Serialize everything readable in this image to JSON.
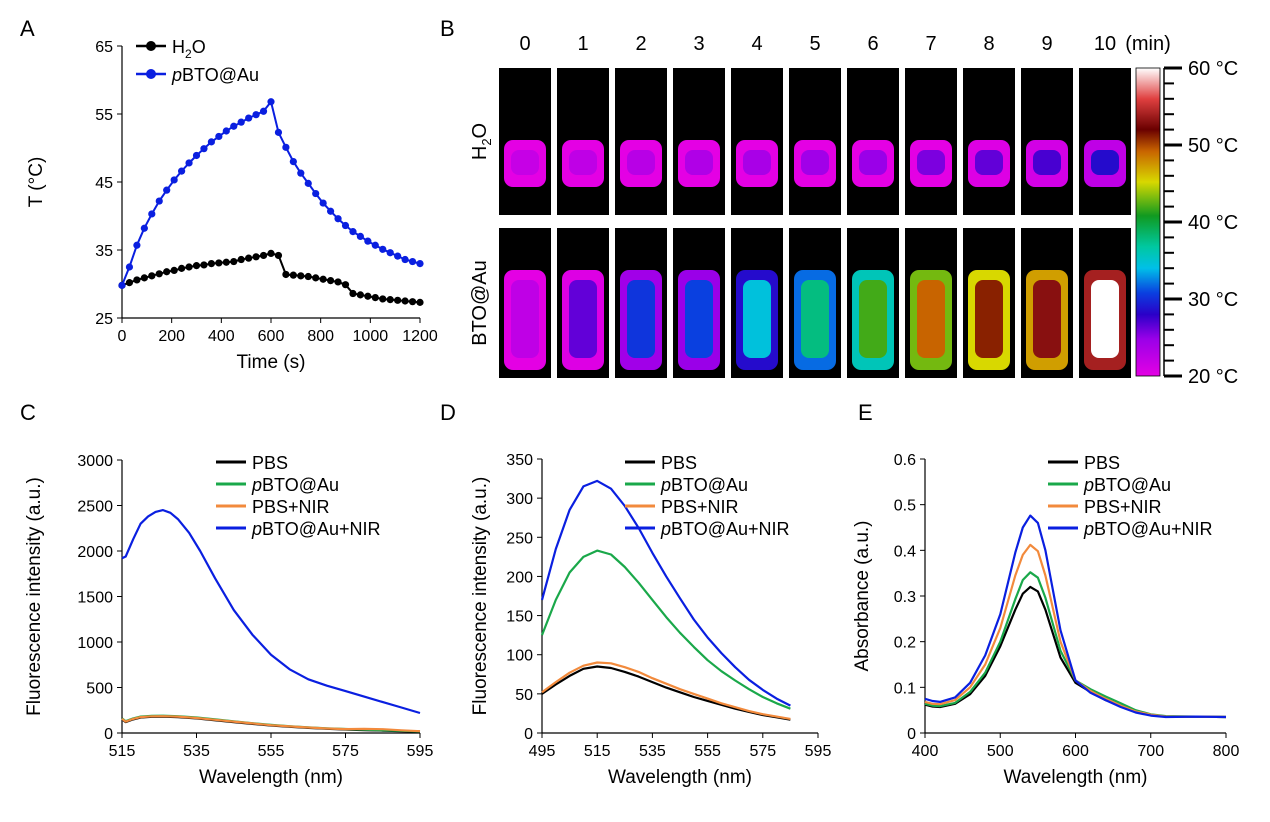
{
  "panels": {
    "A": "A",
    "B": "B",
    "C": "C",
    "D": "D",
    "E": "E"
  },
  "colors": {
    "h2o": "#000000",
    "pbto_au": "#0a1fe0",
    "pbs": "#000000",
    "pbto_au_green": "#1aa84a",
    "pbs_nir": "#f28a3c",
    "pbto_au_nir": "#0a1fe0"
  },
  "chart_data": [
    {
      "panel": "A",
      "type": "line",
      "xlabel": "Time (s)",
      "ylabel": "T (°C)",
      "xlim": [
        0,
        1200
      ],
      "ylim": [
        25,
        65
      ],
      "xticks": [
        0,
        200,
        400,
        600,
        800,
        1000,
        1200
      ],
      "yticks": [
        25,
        35,
        45,
        55,
        65
      ],
      "legend_position": "top-left",
      "series": [
        {
          "name": "H2O",
          "color": "#000000",
          "x": [
            0,
            30,
            60,
            90,
            120,
            150,
            180,
            210,
            240,
            270,
            300,
            330,
            360,
            390,
            420,
            450,
            480,
            510,
            540,
            570,
            600,
            630,
            660,
            690,
            720,
            750,
            780,
            810,
            840,
            870,
            900,
            930,
            960,
            990,
            1020,
            1050,
            1080,
            1110,
            1140,
            1170,
            1200
          ],
          "y": [
            29.8,
            30.2,
            30.6,
            30.9,
            31.2,
            31.5,
            31.8,
            32.0,
            32.3,
            32.5,
            32.7,
            32.8,
            33.0,
            33.1,
            33.2,
            33.3,
            33.6,
            33.8,
            34.0,
            34.2,
            34.5,
            34.2,
            31.4,
            31.3,
            31.2,
            31.1,
            30.9,
            30.7,
            30.5,
            30.3,
            29.9,
            28.6,
            28.4,
            28.2,
            28.0,
            27.8,
            27.7,
            27.6,
            27.5,
            27.4,
            27.3
          ]
        },
        {
          "name": "pBTO@Au",
          "color": "#0a1fe0",
          "x": [
            0,
            30,
            60,
            90,
            120,
            150,
            180,
            210,
            240,
            270,
            300,
            330,
            360,
            390,
            420,
            450,
            480,
            510,
            540,
            570,
            600,
            630,
            660,
            690,
            720,
            750,
            780,
            810,
            840,
            870,
            900,
            930,
            960,
            990,
            1020,
            1050,
            1080,
            1110,
            1140,
            1170,
            1200
          ],
          "y": [
            29.8,
            32.5,
            35.7,
            38.2,
            40.3,
            42.2,
            43.8,
            45.3,
            46.6,
            47.8,
            48.9,
            49.9,
            50.9,
            51.7,
            52.5,
            53.2,
            53.8,
            54.4,
            54.9,
            55.4,
            56.8,
            52.3,
            50.1,
            48.0,
            46.3,
            44.8,
            43.3,
            41.9,
            40.7,
            39.6,
            38.6,
            37.7,
            37.0,
            36.3,
            35.7,
            35.1,
            34.6,
            34.1,
            33.6,
            33.3,
            33.0
          ]
        }
      ]
    },
    {
      "panel": "B",
      "type": "heatmap",
      "column_labels": [
        "0",
        "1",
        "2",
        "3",
        "4",
        "5",
        "6",
        "7",
        "8",
        "9",
        "10"
      ],
      "column_unit": "(min)",
      "row_labels": [
        "H2O",
        "BTO@Au"
      ],
      "colorbar_labels": [
        "60 °C",
        "50 °C",
        "40 °C",
        "30 °C",
        "20 °C"
      ],
      "colorbar_range": [
        20,
        60
      ],
      "temperatures_C": [
        [
          22.0,
          22.5,
          23.0,
          23.5,
          24.0,
          24.5,
          25.0,
          25.8,
          26.5,
          27.2,
          28.5
        ],
        [
          22.5,
          26.5,
          30.5,
          31.0,
          34.5,
          38.0,
          42.0,
          49.0,
          51.0,
          53.0,
          60.0
        ]
      ]
    },
    {
      "panel": "C",
      "type": "line",
      "xlabel": "Wavelength (nm)",
      "ylabel": "Fluorescence intensity (a.u.)",
      "xlim": [
        515,
        595
      ],
      "ylim": [
        0,
        3000
      ],
      "xticks": [
        515,
        535,
        555,
        575,
        595
      ],
      "yticks": [
        0,
        500,
        1000,
        1500,
        2000,
        2500,
        3000
      ],
      "legend_position": "top-right",
      "series": [
        {
          "name": "PBS",
          "color": "#000000",
          "x": [
            515,
            516,
            518,
            520,
            523,
            526,
            530,
            535,
            540,
            545,
            550,
            555,
            560,
            565,
            570,
            575,
            580,
            585,
            590,
            595
          ],
          "y": [
            150,
            120,
            150,
            170,
            178,
            180,
            175,
            160,
            140,
            120,
            100,
            82,
            68,
            56,
            46,
            38,
            32,
            26,
            20,
            15
          ]
        },
        {
          "name": "pBTO@Au",
          "color": "#1aa84a",
          "x": [
            515,
            516,
            518,
            520,
            523,
            526,
            530,
            535,
            540,
            545,
            550,
            555,
            560,
            565,
            570,
            575,
            580,
            585,
            590,
            595
          ],
          "y": [
            160,
            130,
            160,
            180,
            188,
            190,
            185,
            170,
            150,
            128,
            108,
            90,
            75,
            62,
            52,
            44,
            36,
            30,
            24,
            18
          ]
        },
        {
          "name": "PBS+NIR",
          "color": "#f28a3c",
          "x": [
            515,
            516,
            518,
            520,
            523,
            526,
            530,
            535,
            540,
            545,
            550,
            555,
            560,
            565,
            570,
            575,
            580,
            585,
            590,
            595
          ],
          "y": [
            155,
            125,
            155,
            175,
            183,
            185,
            180,
            165,
            145,
            125,
            105,
            86,
            72,
            60,
            50,
            43,
            45,
            42,
            30,
            20
          ]
        },
        {
          "name": "pBTO@Au+NIR",
          "color": "#0a1fe0",
          "x": [
            515,
            516,
            518,
            520,
            522,
            524,
            526,
            528,
            530,
            533,
            536,
            540,
            545,
            550,
            555,
            560,
            565,
            570,
            575,
            580,
            585,
            590,
            595
          ],
          "y": [
            1920,
            1940,
            2130,
            2300,
            2380,
            2430,
            2450,
            2420,
            2350,
            2200,
            2000,
            1700,
            1350,
            1080,
            860,
            700,
            590,
            520,
            460,
            400,
            340,
            280,
            220
          ]
        }
      ]
    },
    {
      "panel": "D",
      "type": "line",
      "xlabel": "Wavelength (nm)",
      "ylabel": "Fluorescence intensity (a.u.)",
      "xlim": [
        495,
        595
      ],
      "ylim": [
        0,
        350
      ],
      "xticks": [
        495,
        515,
        535,
        555,
        575,
        595
      ],
      "yticks": [
        0,
        50,
        100,
        150,
        200,
        250,
        300,
        350
      ],
      "legend_position": "top-right",
      "series": [
        {
          "name": "PBS",
          "color": "#000000",
          "x": [
            495,
            500,
            505,
            510,
            515,
            520,
            525,
            530,
            535,
            540,
            545,
            550,
            555,
            560,
            565,
            570,
            575,
            580,
            585
          ],
          "y": [
            50,
            62,
            73,
            82,
            85,
            83,
            78,
            72,
            65,
            58,
            52,
            46,
            41,
            36,
            31,
            27,
            23,
            20,
            17
          ]
        },
        {
          "name": "pBTO@Au",
          "color": "#1aa84a",
          "x": [
            495,
            500,
            505,
            510,
            515,
            520,
            525,
            530,
            535,
            540,
            545,
            550,
            555,
            560,
            565,
            570,
            575,
            580,
            585
          ],
          "y": [
            125,
            170,
            205,
            225,
            233,
            228,
            212,
            192,
            170,
            148,
            128,
            110,
            93,
            79,
            67,
            56,
            46,
            38,
            31
          ]
        },
        {
          "name": "PBS+NIR",
          "color": "#f28a3c",
          "x": [
            495,
            500,
            505,
            510,
            515,
            520,
            525,
            530,
            535,
            540,
            545,
            550,
            555,
            560,
            565,
            570,
            575,
            580,
            585
          ],
          "y": [
            52,
            65,
            77,
            86,
            90,
            89,
            84,
            78,
            70,
            63,
            56,
            50,
            44,
            38,
            33,
            28,
            24,
            21,
            18
          ]
        },
        {
          "name": "pBTO@Au+NIR",
          "color": "#0a1fe0",
          "x": [
            495,
            500,
            505,
            510,
            515,
            520,
            525,
            530,
            535,
            540,
            545,
            550,
            555,
            560,
            565,
            570,
            575,
            580,
            585
          ],
          "y": [
            170,
            235,
            285,
            315,
            322,
            312,
            290,
            262,
            230,
            200,
            172,
            145,
            122,
            102,
            84,
            68,
            55,
            44,
            35
          ]
        }
      ]
    },
    {
      "panel": "E",
      "type": "line",
      "xlabel": "Wavelength (nm)",
      "ylabel": "Absorbance (a.u.)",
      "xlim": [
        400,
        800
      ],
      "ylim": [
        0,
        0.6
      ],
      "xticks": [
        400,
        500,
        600,
        700,
        800
      ],
      "yticks": [
        0,
        0.1,
        0.2,
        0.3,
        0.4,
        0.5,
        0.6
      ],
      "legend_position": "top-right",
      "series": [
        {
          "name": "PBS",
          "color": "#000000",
          "x": [
            400,
            410,
            420,
            440,
            460,
            480,
            500,
            520,
            530,
            540,
            550,
            560,
            580,
            600,
            620,
            640,
            660,
            680,
            700,
            720,
            760,
            800
          ],
          "y": [
            0.062,
            0.058,
            0.057,
            0.064,
            0.085,
            0.125,
            0.19,
            0.27,
            0.305,
            0.32,
            0.31,
            0.27,
            0.165,
            0.11,
            0.09,
            0.072,
            0.06,
            0.048,
            0.04,
            0.036,
            0.036,
            0.035
          ]
        },
        {
          "name": "pBTO@Au",
          "color": "#1aa84a",
          "x": [
            400,
            410,
            420,
            440,
            460,
            480,
            500,
            520,
            530,
            540,
            550,
            560,
            580,
            600,
            620,
            640,
            660,
            680,
            700,
            720,
            760,
            800
          ],
          "y": [
            0.064,
            0.06,
            0.059,
            0.066,
            0.09,
            0.132,
            0.2,
            0.293,
            0.335,
            0.352,
            0.34,
            0.296,
            0.18,
            0.115,
            0.096,
            0.08,
            0.065,
            0.05,
            0.041,
            0.037,
            0.036,
            0.035
          ]
        },
        {
          "name": "PBS+NIR",
          "color": "#f28a3c",
          "x": [
            400,
            410,
            420,
            440,
            460,
            480,
            500,
            520,
            530,
            540,
            550,
            560,
            580,
            600,
            620,
            640,
            660,
            680,
            700,
            720,
            760,
            800
          ],
          "y": [
            0.068,
            0.064,
            0.063,
            0.072,
            0.1,
            0.15,
            0.23,
            0.345,
            0.39,
            0.412,
            0.398,
            0.345,
            0.2,
            0.115,
            0.092,
            0.075,
            0.06,
            0.047,
            0.04,
            0.036,
            0.036,
            0.035
          ]
        },
        {
          "name": "pBTO@Au+NIR",
          "color": "#0a1fe0",
          "x": [
            400,
            410,
            420,
            440,
            460,
            480,
            500,
            520,
            530,
            540,
            550,
            560,
            580,
            600,
            620,
            640,
            660,
            680,
            700,
            720,
            760,
            800
          ],
          "y": [
            0.075,
            0.07,
            0.068,
            0.078,
            0.11,
            0.17,
            0.26,
            0.395,
            0.45,
            0.476,
            0.46,
            0.4,
            0.225,
            0.115,
            0.088,
            0.072,
            0.057,
            0.045,
            0.038,
            0.035,
            0.036,
            0.035
          ]
        }
      ]
    }
  ]
}
